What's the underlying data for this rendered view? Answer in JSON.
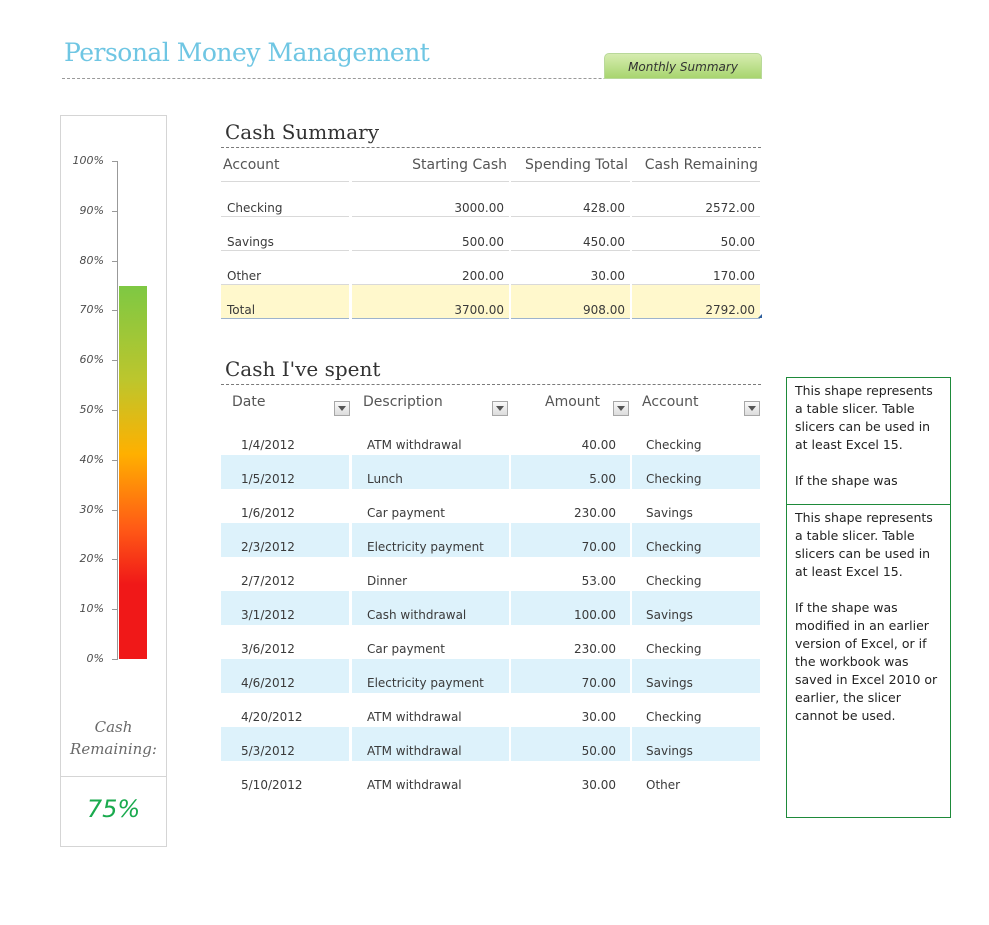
{
  "header": {
    "title": "Personal Money Management",
    "tab_label": "Monthly Summary"
  },
  "gauge": {
    "ticks": [
      "100%",
      "90%",
      "80%",
      "70%",
      "60%",
      "50%",
      "40%",
      "30%",
      "20%",
      "10%",
      "0%"
    ],
    "value_fraction": 0.75,
    "label": "Cash Remaining:",
    "percent_text": "75%",
    "colors": {
      "top": "#7ec843",
      "mid": "#ffb000",
      "bottom": "#f01818",
      "percent_text": "#1aaa4e"
    }
  },
  "cash_summary": {
    "title": "Cash Summary",
    "headers": [
      "Account",
      "Starting Cash",
      "Spending Total",
      "Cash Remaining"
    ],
    "rows": [
      [
        "Checking",
        "3000.00",
        "428.00",
        "2572.00"
      ],
      [
        "Savings",
        "500.00",
        "450.00",
        "50.00"
      ],
      [
        "Other",
        "200.00",
        "30.00",
        "170.00"
      ]
    ],
    "total": [
      "Total",
      "3700.00",
      "908.00",
      "2792.00"
    ]
  },
  "spent": {
    "title": "Cash I've spent",
    "headers": [
      "Date",
      "Description",
      "Amount",
      "Account"
    ],
    "rows": [
      [
        "1/4/2012",
        "ATM withdrawal",
        "40.00",
        "Checking"
      ],
      [
        "1/5/2012",
        "Lunch",
        "5.00",
        "Checking"
      ],
      [
        "1/6/2012",
        "Car payment",
        "230.00",
        "Savings"
      ],
      [
        "2/3/2012",
        "Electricity payment",
        "70.00",
        "Checking"
      ],
      [
        "2/7/2012",
        "Dinner",
        "53.00",
        "Checking"
      ],
      [
        "3/1/2012",
        "Cash withdrawal",
        "100.00",
        "Savings"
      ],
      [
        "3/6/2012",
        "Car payment",
        "230.00",
        "Checking"
      ],
      [
        "4/6/2012",
        "Electricity payment",
        "70.00",
        "Savings"
      ],
      [
        "4/20/2012",
        "ATM withdrawal",
        "30.00",
        "Checking"
      ],
      [
        "5/3/2012",
        "ATM withdrawal",
        "50.00",
        "Savings"
      ],
      [
        "5/10/2012",
        "ATM withdrawal",
        "30.00",
        "Other"
      ]
    ]
  },
  "slicers": [
    {
      "paragraphs": [
        "This shape represents a table slicer. Table slicers can be used in at least Excel 15.",
        "If the shape was"
      ]
    },
    {
      "paragraphs": [
        "This shape represents a table slicer. Table slicers can be used in at least Excel 15.",
        "If the shape was modified in an earlier version of Excel, or if the workbook was saved in Excel 2010  or earlier, the slicer cannot be used."
      ]
    }
  ]
}
